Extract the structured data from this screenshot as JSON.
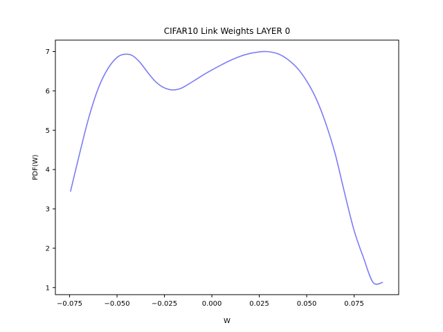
{
  "chart_data": {
    "type": "line",
    "title": "CIFAR10 Link Weights LAYER 0",
    "xlabel": "W",
    "ylabel": "PDF(W)",
    "xlim": [
      -0.0825,
      0.0985
    ],
    "ylim": [
      0.82,
      7.29
    ],
    "grid": false,
    "x_ticks": [
      -0.075,
      -0.05,
      -0.025,
      0.0,
      0.025,
      0.05,
      0.075
    ],
    "x_tick_labels": [
      "−0.075",
      "−0.050",
      "−0.025",
      "0.000",
      "0.025",
      "0.050",
      "0.075"
    ],
    "y_ticks": [
      1,
      2,
      3,
      4,
      5,
      6,
      7
    ],
    "y_tick_labels": [
      "1",
      "2",
      "3",
      "4",
      "5",
      "6",
      "7"
    ],
    "series": [
      {
        "color": "#7b7bf5",
        "x": [
          -0.0745,
          -0.07,
          -0.065,
          -0.06,
          -0.055,
          -0.05,
          -0.046,
          -0.042,
          -0.038,
          -0.034,
          -0.03,
          -0.026,
          -0.022,
          -0.019,
          -0.016,
          -0.012,
          -0.008,
          -0.004,
          0.0,
          0.005,
          0.01,
          0.015,
          0.02,
          0.025,
          0.0285,
          0.032,
          0.036,
          0.04,
          0.045,
          0.05,
          0.055,
          0.06,
          0.065,
          0.07,
          0.075,
          0.08,
          0.085,
          0.09
        ],
        "y": [
          3.45,
          4.35,
          5.3,
          6.05,
          6.55,
          6.85,
          6.93,
          6.9,
          6.73,
          6.48,
          6.25,
          6.1,
          6.03,
          6.03,
          6.07,
          6.18,
          6.3,
          6.42,
          6.53,
          6.66,
          6.78,
          6.88,
          6.95,
          6.99,
          7.0,
          6.98,
          6.92,
          6.8,
          6.58,
          6.25,
          5.8,
          5.18,
          4.4,
          3.4,
          2.45,
          1.75,
          1.13,
          1.13
        ]
      }
    ]
  }
}
